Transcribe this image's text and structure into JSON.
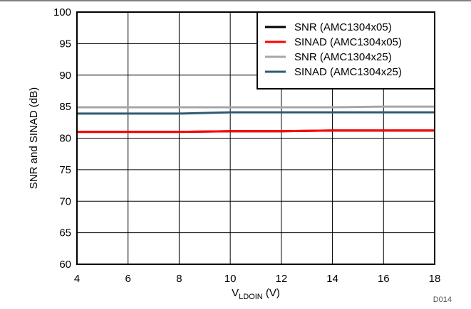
{
  "chart_data": {
    "type": "line",
    "x": [
      4,
      6,
      8,
      10,
      12,
      14,
      16,
      18
    ],
    "xlim": [
      4,
      18
    ],
    "ylim": [
      60,
      100
    ],
    "xticks": [
      "4",
      "6",
      "8",
      "10",
      "12",
      "14",
      "16",
      "18"
    ],
    "yticks": [
      "60",
      "65",
      "70",
      "75",
      "80",
      "85",
      "90",
      "95",
      "100"
    ],
    "xlabel": {
      "main": "V",
      "sub": "LDOIN",
      "suffix": " (V)"
    },
    "ylabel": "SNR and SINAD (dB)",
    "grid": true,
    "legend_position": "top-right",
    "code": "D014",
    "series": [
      {
        "name": "SNR (AMC1304x05)",
        "color": "#000000",
        "values": [
          81.0,
          81.0,
          81.0,
          81.1,
          81.1,
          81.2,
          81.2,
          81.2
        ]
      },
      {
        "name": "SINAD (AMC1304x05)",
        "color": "#ff0000",
        "values": [
          81.0,
          81.0,
          81.0,
          81.1,
          81.1,
          81.2,
          81.2,
          81.2
        ]
      },
      {
        "name": "SNR (AMC1304x25)",
        "color": "#a6a6a6",
        "values": [
          84.9,
          84.9,
          84.9,
          84.9,
          84.9,
          84.9,
          85.0,
          85.0
        ]
      },
      {
        "name": "SINAD (AMC1304x25)",
        "color": "#2e5a70",
        "values": [
          83.9,
          83.9,
          83.9,
          84.1,
          84.1,
          84.1,
          84.1,
          84.1
        ]
      }
    ]
  }
}
